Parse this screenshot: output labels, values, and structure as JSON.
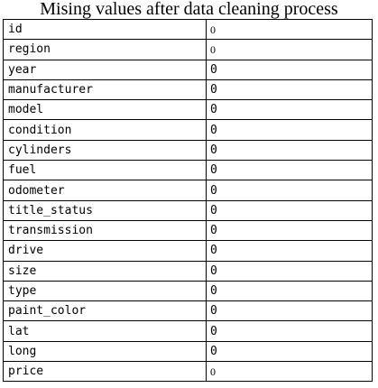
{
  "title": "Mising values after data cleaning process",
  "table": {
    "rows": [
      {
        "name": "id",
        "value": "0"
      },
      {
        "name": "region",
        "value": "0"
      },
      {
        "name": "year",
        "value": "0"
      },
      {
        "name": "manufacturer",
        "value": "0"
      },
      {
        "name": "model",
        "value": "0"
      },
      {
        "name": "condition",
        "value": "0"
      },
      {
        "name": "cylinders",
        "value": "0"
      },
      {
        "name": "fuel",
        "value": "0"
      },
      {
        "name": "odometer",
        "value": "0"
      },
      {
        "name": "title_status",
        "value": "0"
      },
      {
        "name": "transmission",
        "value": "0"
      },
      {
        "name": "drive",
        "value": "0"
      },
      {
        "name": "size",
        "value": "0"
      },
      {
        "name": "type",
        "value": "0"
      },
      {
        "name": "paint_color",
        "value": "0"
      },
      {
        "name": "lat",
        "value": "0"
      },
      {
        "name": "long",
        "value": "0"
      },
      {
        "name": "price",
        "value": "0"
      }
    ]
  }
}
